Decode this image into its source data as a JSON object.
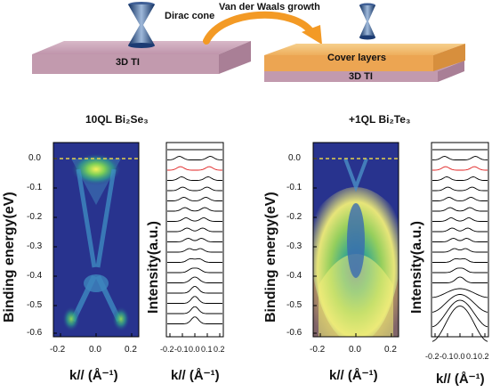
{
  "top": {
    "left_slab_label": "3D TI",
    "dirac_label": "Dirac cone",
    "arrow_label": "Van der Waals growth",
    "cover_label": "Cover layers",
    "right_slab_label": "3D TI"
  },
  "panels": {
    "left_title": "10QL Bi₂Se₃",
    "right_title": "+1QL Bi₂Te₃",
    "y_axis_label": "Binding energy(eV)",
    "intensity_label": "Intensity(a.u.)",
    "k_label": "k// (Å⁻¹)",
    "y_ticks": [
      "0.0",
      "-0.1",
      "-0.2",
      "-0.3",
      "-0.4",
      "-0.5",
      "-0.6"
    ],
    "x_ticks_map": [
      "-0.2",
      "0.0",
      "0.2"
    ],
    "x_ticks_edc": [
      "-0.2",
      "-0.1",
      "0.0",
      "0.1",
      "0.2"
    ]
  },
  "colors": {
    "slab_top": "#c9a4b8",
    "cover_layer": "#f3c37a",
    "arrow": "#f39a25",
    "map_bg": "#2a3590",
    "fermi_line": "#e6d24a",
    "edc_highlight": "#e02020"
  }
}
